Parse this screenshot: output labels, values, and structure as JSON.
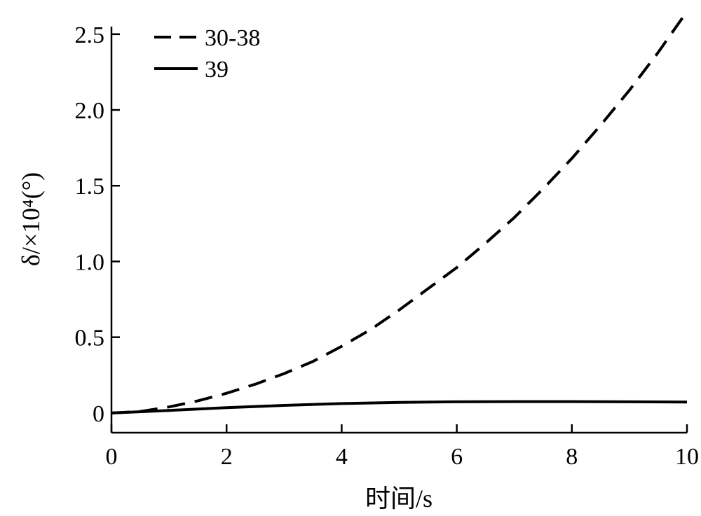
{
  "chart_data": {
    "type": "line",
    "title": "",
    "xlabel": "时间/s",
    "ylabel": "δ/×10⁴(°)",
    "xlim": [
      0,
      10
    ],
    "ylim": [
      -0.13,
      2.55
    ],
    "x_ticks": [
      0,
      2,
      4,
      6,
      8,
      10
    ],
    "x_tick_labels": [
      "0",
      "2",
      "4",
      "6",
      "8",
      "10"
    ],
    "y_ticks": [
      0,
      0.5,
      1.0,
      1.5,
      2.0,
      2.5
    ],
    "y_tick_labels": [
      "0",
      "0.5",
      "1.0",
      "1.5",
      "2.0",
      "2.5"
    ],
    "grid": false,
    "legend_position": "top-left",
    "series": [
      {
        "name": "30-38",
        "style": "dashed",
        "color": "#000000",
        "x": [
          0,
          0.5,
          1,
          1.5,
          2,
          2.5,
          3,
          3.5,
          4,
          4.5,
          5,
          5.5,
          6,
          6.5,
          7,
          7.5,
          8,
          8.5,
          9,
          9.5,
          10
        ],
        "y": [
          0,
          0.01,
          0.04,
          0.08,
          0.13,
          0.19,
          0.26,
          0.34,
          0.44,
          0.55,
          0.68,
          0.82,
          0.96,
          1.12,
          1.29,
          1.48,
          1.68,
          1.9,
          2.13,
          2.38,
          2.65
        ]
      },
      {
        "name": "39",
        "style": "solid",
        "color": "#000000",
        "x": [
          0,
          1,
          2,
          3,
          4,
          5,
          6,
          7,
          8,
          9,
          10
        ],
        "y": [
          0,
          0.017,
          0.035,
          0.05,
          0.062,
          0.07,
          0.074,
          0.075,
          0.075,
          0.074,
          0.072
        ]
      }
    ]
  }
}
